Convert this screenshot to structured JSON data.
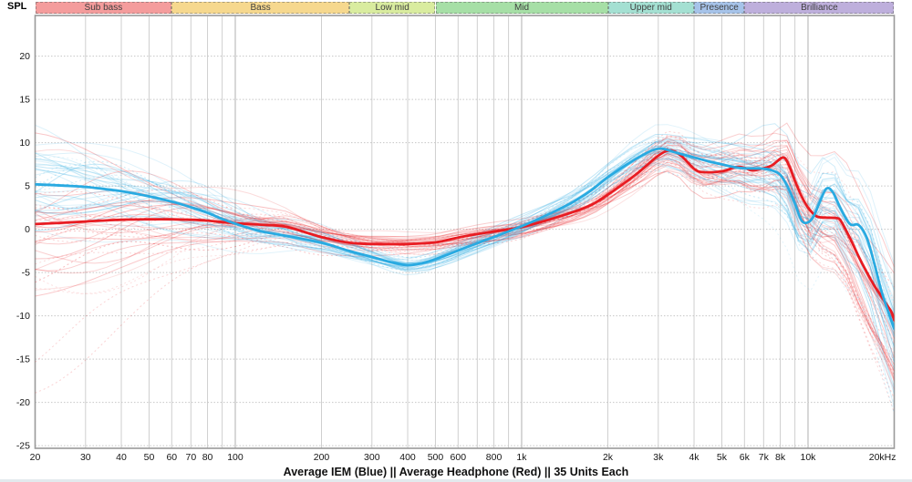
{
  "caption": "Average IEM (Blue) || Average Headphone (Red) || 35 Units Each",
  "bands": [
    {
      "label": "Sub bass",
      "from_hz": 20,
      "to_hz": 60,
      "fill": "#f49c9c"
    },
    {
      "label": "Bass",
      "from_hz": 60,
      "to_hz": 250,
      "fill": "#f6d88e"
    },
    {
      "label": "Low mid",
      "from_hz": 250,
      "to_hz": 500,
      "fill": "#d9ec9f"
    },
    {
      "label": "Mid",
      "from_hz": 500,
      "to_hz": 2000,
      "fill": "#a6dfa6"
    },
    {
      "label": "Upper mid",
      "from_hz": 2000,
      "to_hz": 4000,
      "fill": "#a4e0d2"
    },
    {
      "label": "Presence",
      "from_hz": 4000,
      "to_hz": 6000,
      "fill": "#a6c3e9"
    },
    {
      "label": "Brilliance",
      "from_hz": 6000,
      "to_hz": 20000,
      "fill": "#beafdc"
    }
  ],
  "chart_data": {
    "type": "line",
    "title": "",
    "xlabel": "",
    "ylabel": "SPL",
    "x_scale": "log",
    "x_range_hz": [
      20,
      20000
    ],
    "ylim": [
      -25.3,
      24.7
    ],
    "y_grid_step_db": 5,
    "grid": true,
    "legend_position": "none",
    "x_ticks": [
      {
        "label": "20",
        "hz": 20
      },
      {
        "label": "30",
        "hz": 30
      },
      {
        "label": "40",
        "hz": 40
      },
      {
        "label": "50",
        "hz": 50
      },
      {
        "label": "60",
        "hz": 60
      },
      {
        "label": "70",
        "hz": 70
      },
      {
        "label": "80",
        "hz": 80
      },
      {
        "label": "100",
        "hz": 100
      },
      {
        "label": "200",
        "hz": 200
      },
      {
        "label": "300",
        "hz": 300
      },
      {
        "label": "400",
        "hz": 400
      },
      {
        "label": "500",
        "hz": 500
      },
      {
        "label": "600",
        "hz": 600
      },
      {
        "label": "800",
        "hz": 800
      },
      {
        "label": "1k",
        "hz": 1000
      },
      {
        "label": "2k",
        "hz": 2000
      },
      {
        "label": "3k",
        "hz": 3000
      },
      {
        "label": "4k",
        "hz": 4000
      },
      {
        "label": "5k",
        "hz": 5000
      },
      {
        "label": "6k",
        "hz": 6000
      },
      {
        "label": "7k",
        "hz": 7000
      },
      {
        "label": "8k",
        "hz": 8000
      },
      {
        "label": "10k",
        "hz": 10000
      },
      {
        "label": "20kHz",
        "hz": 20000
      }
    ],
    "y_ticks": [
      20,
      15,
      10,
      5,
      0,
      -5,
      -10,
      -15,
      -20,
      -25
    ],
    "grid_hz": [
      20,
      30,
      40,
      50,
      60,
      70,
      80,
      90,
      100,
      200,
      300,
      400,
      500,
      600,
      700,
      800,
      900,
      1000,
      2000,
      3000,
      4000,
      5000,
      6000,
      7000,
      8000,
      9000,
      10000,
      20000
    ],
    "series": [
      {
        "name": "Average IEM",
        "color": "#29aae1",
        "points": [
          [
            20,
            5.2
          ],
          [
            25,
            5.05
          ],
          [
            30,
            4.9
          ],
          [
            35,
            4.65
          ],
          [
            40,
            4.4
          ],
          [
            50,
            3.8
          ],
          [
            60,
            3.2
          ],
          [
            70,
            2.55
          ],
          [
            80,
            1.9
          ],
          [
            90,
            1.2
          ],
          [
            100,
            0.65
          ],
          [
            120,
            -0.15
          ],
          [
            150,
            -0.75
          ],
          [
            200,
            -1.55
          ],
          [
            250,
            -2.5
          ],
          [
            300,
            -3.2
          ],
          [
            350,
            -3.8
          ],
          [
            400,
            -4.15
          ],
          [
            450,
            -3.9
          ],
          [
            500,
            -3.45
          ],
          [
            600,
            -2.45
          ],
          [
            700,
            -1.6
          ],
          [
            800,
            -0.9
          ],
          [
            900,
            -0.25
          ],
          [
            1000,
            0.35
          ],
          [
            1200,
            1.5
          ],
          [
            1500,
            3.1
          ],
          [
            1750,
            4.5
          ],
          [
            2000,
            6.0
          ],
          [
            2500,
            8.1
          ],
          [
            3000,
            9.3
          ],
          [
            3500,
            8.8
          ],
          [
            4000,
            8.3
          ],
          [
            4500,
            7.85
          ],
          [
            5000,
            7.5
          ],
          [
            5500,
            7.2
          ],
          [
            6000,
            7.05
          ],
          [
            7000,
            7.0
          ],
          [
            7500,
            6.8
          ],
          [
            8000,
            6.3
          ],
          [
            8500,
            4.9
          ],
          [
            9000,
            3.0
          ],
          [
            9500,
            1.0
          ],
          [
            10000,
            0.8
          ],
          [
            10500,
            1.6
          ],
          [
            11000,
            3.2
          ],
          [
            11600,
            4.7
          ],
          [
            12200,
            4.3
          ],
          [
            13000,
            2.4
          ],
          [
            14000,
            0.6
          ],
          [
            15000,
            0.5
          ],
          [
            16000,
            -0.9
          ],
          [
            17000,
            -3.8
          ],
          [
            18000,
            -7.0
          ],
          [
            19000,
            -9.4
          ],
          [
            20000,
            -11.5
          ]
        ]
      },
      {
        "name": "Average Headphone",
        "color": "#e81c22",
        "points": [
          [
            20,
            0.6
          ],
          [
            25,
            0.75
          ],
          [
            30,
            0.9
          ],
          [
            40,
            1.1
          ],
          [
            50,
            1.15
          ],
          [
            60,
            1.15
          ],
          [
            70,
            1.1
          ],
          [
            80,
            1.0
          ],
          [
            100,
            0.7
          ],
          [
            120,
            0.55
          ],
          [
            150,
            0.3
          ],
          [
            200,
            -0.9
          ],
          [
            250,
            -1.55
          ],
          [
            300,
            -1.7
          ],
          [
            400,
            -1.7
          ],
          [
            500,
            -1.5
          ],
          [
            600,
            -0.95
          ],
          [
            700,
            -0.55
          ],
          [
            800,
            -0.25
          ],
          [
            900,
            -0.02
          ],
          [
            1000,
            0.25
          ],
          [
            1200,
            0.95
          ],
          [
            1500,
            1.95
          ],
          [
            1750,
            2.8
          ],
          [
            2000,
            4.0
          ],
          [
            2500,
            6.3
          ],
          [
            3000,
            8.5
          ],
          [
            3300,
            9.1
          ],
          [
            3600,
            8.5
          ],
          [
            4000,
            7.0
          ],
          [
            4300,
            6.6
          ],
          [
            5000,
            6.7
          ],
          [
            5600,
            7.2
          ],
          [
            6000,
            7.1
          ],
          [
            6400,
            6.8
          ],
          [
            7000,
            7.05
          ],
          [
            7500,
            7.4
          ],
          [
            8200,
            8.3
          ],
          [
            8600,
            7.3
          ],
          [
            9000,
            5.6
          ],
          [
            9500,
            3.8
          ],
          [
            10000,
            2.5
          ],
          [
            10700,
            1.5
          ],
          [
            11500,
            1.35
          ],
          [
            12500,
            1.3
          ],
          [
            13000,
            1.0
          ],
          [
            14000,
            -1.0
          ],
          [
            15000,
            -3.1
          ],
          [
            16000,
            -4.9
          ],
          [
            17000,
            -6.45
          ],
          [
            18000,
            -7.7
          ],
          [
            19000,
            -8.9
          ],
          [
            19600,
            -9.6
          ],
          [
            20000,
            -10.5
          ]
        ]
      }
    ],
    "unit_traces": {
      "per_series": 35,
      "style": "faint thin lines, some dotted, spread around each average",
      "dotted_fraction": 0.2
    },
    "colors": {
      "grid_minor": "#cfcfcf",
      "grid_decade": "#b0b0b0",
      "plot_border": "#9a9a9a"
    }
  }
}
